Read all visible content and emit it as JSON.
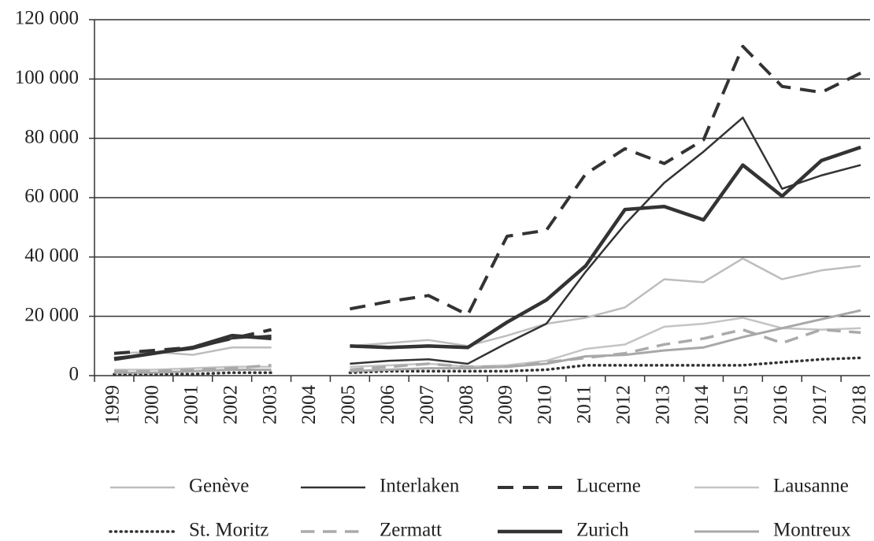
{
  "chart_data": {
    "type": "line",
    "categories": [
      "1999",
      "2000",
      "2001",
      "2002",
      "2003",
      "2004",
      "2005",
      "2006",
      "2007",
      "2008",
      "2009",
      "2010",
      "2011",
      "2012",
      "2013",
      "2014",
      "2015",
      "2016",
      "2017",
      "2018"
    ],
    "ylim": [
      0,
      120000
    ],
    "yticks": [
      0,
      {
        "value": 20000,
        "label": "20 000"
      },
      {
        "value": 40000,
        "label": "40 000"
      },
      {
        "value": 60000,
        "label": "60 000"
      },
      {
        "value": 80000,
        "label": "80 000"
      },
      {
        "value": 100000,
        "label": "100 000"
      },
      {
        "value": 120000,
        "label": "120 000"
      }
    ],
    "grid": true,
    "legend": "bottom",
    "series": [
      {
        "name": "Genève",
        "color": "#bdbdbd",
        "dash": "solid",
        "line_width": 2.5,
        "values": [
          7500,
          8000,
          7000,
          9500,
          9500,
          null,
          10000,
          11000,
          12000,
          10000,
          13500,
          17500,
          19500,
          23000,
          32500,
          31500,
          39500,
          32500,
          35500,
          37000
        ]
      },
      {
        "name": "Interlaken",
        "color": "#333333",
        "dash": "solid",
        "line_width": 2.5,
        "values": [
          6000,
          7500,
          9000,
          12500,
          13500,
          null,
          4000,
          5000,
          5500,
          4000,
          11000,
          17500,
          35000,
          51000,
          65000,
          75500,
          87000,
          63000,
          67500,
          71000
        ]
      },
      {
        "name": "Lucerne",
        "color": "#333333",
        "dash": "dashed",
        "line_width": 4,
        "values": [
          7500,
          8500,
          9500,
          12500,
          15500,
          null,
          22500,
          25000,
          27000,
          20500,
          47000,
          49000,
          68000,
          76500,
          71500,
          79500,
          111000,
          97500,
          95500,
          102000
        ]
      },
      {
        "name": "Lausanne",
        "color": "#c4c4c4",
        "dash": "solid",
        "line_width": 2.5,
        "values": [
          2000,
          2000,
          2500,
          3000,
          3000,
          null,
          3000,
          3500,
          4000,
          3000,
          3500,
          5000,
          9000,
          10500,
          16500,
          17500,
          19500,
          16000,
          15500,
          16000
        ]
      },
      {
        "name": "St. Moritz",
        "color": "#333333",
        "dash": "dotted",
        "line_width": 3.5,
        "values": [
          500,
          500,
          500,
          1000,
          1000,
          null,
          1000,
          1500,
          1500,
          1500,
          1500,
          2000,
          3500,
          3500,
          3500,
          3500,
          3500,
          4500,
          5500,
          6000
        ]
      },
      {
        "name": "Zermatt",
        "color": "#aaaaaa",
        "dash": "dashed",
        "line_width": 3.5,
        "values": [
          1500,
          1500,
          2000,
          2500,
          3500,
          null,
          2000,
          3000,
          4000,
          3000,
          3000,
          4500,
          6000,
          7500,
          10500,
          12500,
          15500,
          11000,
          15500,
          14500
        ]
      },
      {
        "name": "Zurich",
        "color": "#333333",
        "dash": "solid",
        "line_width": 4.5,
        "values": [
          5500,
          7500,
          9500,
          13500,
          12500,
          null,
          10000,
          9500,
          10000,
          9500,
          18000,
          25500,
          37000,
          56000,
          57000,
          52500,
          71000,
          60500,
          72500,
          77000
        ]
      },
      {
        "name": "Montreux",
        "color": "#a8a8a8",
        "dash": "solid",
        "line_width": 3,
        "values": [
          1000,
          1000,
          1500,
          2000,
          2000,
          null,
          1500,
          2000,
          2500,
          2500,
          3000,
          4000,
          6500,
          7000,
          8500,
          9500,
          13000,
          16000,
          19000,
          22000
        ]
      }
    ]
  }
}
